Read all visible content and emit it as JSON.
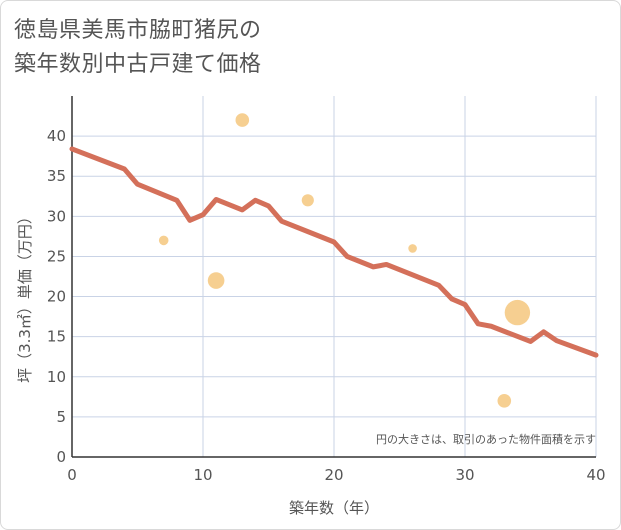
{
  "title_line1": "徳島県美馬市脇町猪尻の",
  "title_line2": "築年数別中古戸建て価格",
  "chart_data": {
    "type": "scatter",
    "title": "徳島県美馬市脇町猪尻の築年数別中古戸建て価格",
    "xlabel": "築年数（年）",
    "ylabel": "坪（3.3㎡）単価（万円）",
    "xlim": [
      0,
      40
    ],
    "ylim": [
      0,
      45
    ],
    "x_ticks": [
      "0",
      "10",
      "20",
      "30",
      "40"
    ],
    "y_ticks": [
      "0",
      "5",
      "10",
      "15",
      "20",
      "25",
      "30",
      "35",
      "40"
    ],
    "grid": true,
    "annotation": "円の大きさは、取引のあった物件面積を示す",
    "point_color": "#f5c77e",
    "line_color": "#d4705a",
    "points": [
      {
        "x": 7,
        "y": 27,
        "size": 1
      },
      {
        "x": 11,
        "y": 22,
        "size": 3
      },
      {
        "x": 13,
        "y": 42,
        "size": 2
      },
      {
        "x": 18,
        "y": 32,
        "size": 1.6
      },
      {
        "x": 26,
        "y": 26,
        "size": 0.8
      },
      {
        "x": 33,
        "y": 7,
        "size": 2
      },
      {
        "x": 34,
        "y": 18,
        "size": 7
      }
    ],
    "trend_line": {
      "name": "trend",
      "x": [
        0,
        4,
        5,
        8,
        9,
        10,
        11,
        13,
        14,
        15,
        16,
        20,
        21,
        23,
        24,
        28,
        29,
        30,
        31,
        32,
        35,
        36,
        37,
        40
      ],
      "y": [
        38.4,
        35.9,
        34,
        32,
        29.5,
        30.2,
        32.1,
        30.8,
        32,
        31.3,
        29.4,
        26.8,
        25,
        23.7,
        24,
        21.4,
        19.7,
        19,
        16.6,
        16.3,
        14.4,
        15.6,
        14.5,
        12.7
      ]
    }
  }
}
